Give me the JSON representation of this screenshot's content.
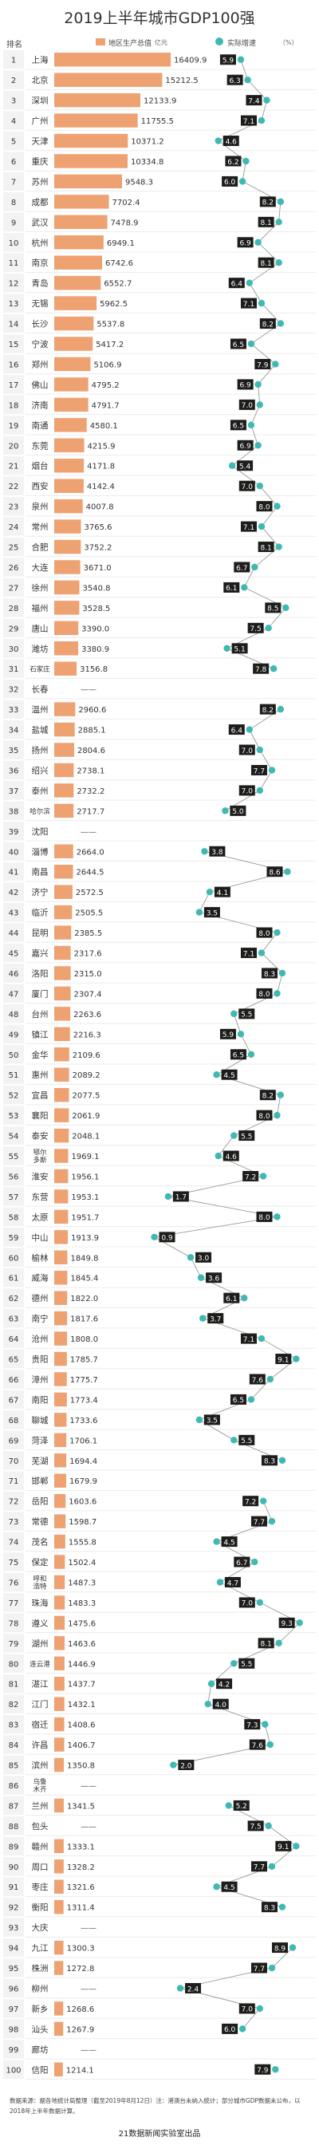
{
  "title": "2019上半年城市GDP100强",
  "header": {
    "rank_label": "排名",
    "gdp_legend": "地区生产总值",
    "gdp_unit": "亿元",
    "growth_legend": "实际增速",
    "growth_unit": "（%）"
  },
  "colors": {
    "bar": "#eea171",
    "dot": "#3fb9b2",
    "label_box": "#1d1d1b",
    "line": "#9a9a9a",
    "rank_bg": "#f3f3f3"
  },
  "chart_data": {
    "type": "bar",
    "title": "2019上半年城市GDP100强",
    "series": [
      {
        "name": "地区生产总值",
        "unit": "亿元"
      },
      {
        "name": "实际增速",
        "unit": "%"
      }
    ],
    "xlim_gdp": [
      0,
      20000
    ],
    "xlim_growth": [
      0,
      9.5
    ],
    "rows": [
      {
        "rank": 1,
        "city": "上海",
        "gdp": 16409.9,
        "gdp_label": "16409.9",
        "growth": 5.9,
        "growth_label": "5.9"
      },
      {
        "rank": 2,
        "city": "北京",
        "gdp": 15212.5,
        "gdp_label": "15212.5",
        "growth": 6.3,
        "growth_label": "6.3"
      },
      {
        "rank": 3,
        "city": "深圳",
        "gdp": 12133.9,
        "gdp_label": "12133.9",
        "growth": 7.4,
        "growth_label": "7.4"
      },
      {
        "rank": 4,
        "city": "广州",
        "gdp": 11755.5,
        "gdp_label": "11755.5",
        "growth": 7.1,
        "growth_label": "7.1"
      },
      {
        "rank": 5,
        "city": "天津",
        "gdp": 10371.2,
        "gdp_label": "10371.2",
        "growth": 4.6,
        "growth_label": "4.6"
      },
      {
        "rank": 6,
        "city": "重庆",
        "gdp": 10334.8,
        "gdp_label": "10334.8",
        "growth": 6.2,
        "growth_label": "6.2"
      },
      {
        "rank": 7,
        "city": "苏州",
        "gdp": 9548.3,
        "gdp_label": "9548.3",
        "growth": 6.0,
        "growth_label": "6.0"
      },
      {
        "rank": 8,
        "city": "成都",
        "gdp": 7702.4,
        "gdp_label": "7702.4",
        "growth": 8.2,
        "growth_label": "8.2"
      },
      {
        "rank": 9,
        "city": "武汉",
        "gdp": 7478.9,
        "gdp_label": "7478.9",
        "growth": 8.1,
        "growth_label": "8.1"
      },
      {
        "rank": 10,
        "city": "杭州",
        "gdp": 6949.1,
        "gdp_label": "6949.1",
        "growth": 6.9,
        "growth_label": "6.9"
      },
      {
        "rank": 11,
        "city": "南京",
        "gdp": 6742.6,
        "gdp_label": "6742.6",
        "growth": 8.1,
        "growth_label": "8.1"
      },
      {
        "rank": 12,
        "city": "青岛",
        "gdp": 6552.7,
        "gdp_label": "6552.7",
        "growth": 6.4,
        "growth_label": "6.4"
      },
      {
        "rank": 13,
        "city": "无锡",
        "gdp": 5962.5,
        "gdp_label": "5962.5",
        "growth": 7.1,
        "growth_label": "7.1"
      },
      {
        "rank": 14,
        "city": "长沙",
        "gdp": 5537.8,
        "gdp_label": "5537.8",
        "growth": 8.2,
        "growth_label": "8.2"
      },
      {
        "rank": 15,
        "city": "宁波",
        "gdp": 5417.2,
        "gdp_label": "5417.2",
        "growth": 6.5,
        "growth_label": "6.5"
      },
      {
        "rank": 16,
        "city": "郑州",
        "gdp": 5106.9,
        "gdp_label": "5106.9",
        "growth": 7.9,
        "growth_label": "7.9"
      },
      {
        "rank": 17,
        "city": "佛山",
        "gdp": 4795.2,
        "gdp_label": "4795.2",
        "growth": 6.9,
        "growth_label": "6.9"
      },
      {
        "rank": 18,
        "city": "济南",
        "gdp": 4791.7,
        "gdp_label": "4791.7",
        "growth": 7.0,
        "growth_label": "7.0"
      },
      {
        "rank": 19,
        "city": "南通",
        "gdp": 4580.1,
        "gdp_label": "4580.1",
        "growth": 6.5,
        "growth_label": "6.5"
      },
      {
        "rank": 20,
        "city": "东莞",
        "gdp": 4215.9,
        "gdp_label": "4215.9",
        "growth": 6.9,
        "growth_label": "6.9"
      },
      {
        "rank": 21,
        "city": "烟台",
        "gdp": 4171.8,
        "gdp_label": "4171.8",
        "growth": 5.4,
        "growth_label": "5.4"
      },
      {
        "rank": 22,
        "city": "西安",
        "gdp": 4142.4,
        "gdp_label": "4142.4",
        "growth": 7.0,
        "growth_label": "7.0"
      },
      {
        "rank": 23,
        "city": "泉州",
        "gdp": 4007.8,
        "gdp_label": "4007.8",
        "growth": 8.0,
        "growth_label": "8.0"
      },
      {
        "rank": 24,
        "city": "常州",
        "gdp": 3765.6,
        "gdp_label": "3765.6",
        "growth": 7.1,
        "growth_label": "7.1"
      },
      {
        "rank": 25,
        "city": "合肥",
        "gdp": 3752.2,
        "gdp_label": "3752.2",
        "growth": 8.1,
        "growth_label": "8.1"
      },
      {
        "rank": 26,
        "city": "大连",
        "gdp": 3671.0,
        "gdp_label": "3671.0",
        "growth": 6.7,
        "growth_label": "6.7"
      },
      {
        "rank": 27,
        "city": "徐州",
        "gdp": 3540.8,
        "gdp_label": "3540.8",
        "growth": 6.1,
        "growth_label": "6.1"
      },
      {
        "rank": 28,
        "city": "福州",
        "gdp": 3528.5,
        "gdp_label": "3528.5",
        "growth": 8.5,
        "growth_label": "8.5"
      },
      {
        "rank": 29,
        "city": "唐山",
        "gdp": 3390.0,
        "gdp_label": "3390.0",
        "growth": 7.5,
        "growth_label": "7.5"
      },
      {
        "rank": 30,
        "city": "潍坊",
        "gdp": 3380.9,
        "gdp_label": "3380.9",
        "growth": 5.1,
        "growth_label": "5.1"
      },
      {
        "rank": 31,
        "city": "石家庄",
        "gdp": 3156.8,
        "gdp_label": "3156.8",
        "growth": 7.8,
        "growth_label": "7.8"
      },
      {
        "rank": 32,
        "city": "长春",
        "gdp": null,
        "gdp_label": "——",
        "growth": null,
        "growth_label": ""
      },
      {
        "rank": 33,
        "city": "温州",
        "gdp": 2960.6,
        "gdp_label": "2960.6",
        "growth": 8.2,
        "growth_label": "8.2"
      },
      {
        "rank": 34,
        "city": "盐城",
        "gdp": 2885.1,
        "gdp_label": "2885.1",
        "growth": 6.4,
        "growth_label": "6.4"
      },
      {
        "rank": 35,
        "city": "扬州",
        "gdp": 2804.6,
        "gdp_label": "2804.6",
        "growth": 7.0,
        "growth_label": "7.0"
      },
      {
        "rank": 36,
        "city": "绍兴",
        "gdp": 2738.1,
        "gdp_label": "2738.1",
        "growth": 7.7,
        "growth_label": "7.7"
      },
      {
        "rank": 37,
        "city": "泰州",
        "gdp": 2732.2,
        "gdp_label": "2732.2",
        "growth": 7.0,
        "growth_label": "7.0"
      },
      {
        "rank": 38,
        "city": "哈尔滨",
        "gdp": 2717.7,
        "gdp_label": "2717.7",
        "growth": 5.0,
        "growth_label": "5.0"
      },
      {
        "rank": 39,
        "city": "沈阳",
        "gdp": null,
        "gdp_label": "——",
        "growth": null,
        "growth_label": ""
      },
      {
        "rank": 40,
        "city": "淄博",
        "gdp": 2664.0,
        "gdp_label": "2664.0",
        "growth": 3.8,
        "growth_label": "3.8"
      },
      {
        "rank": 41,
        "city": "南昌",
        "gdp": 2644.5,
        "gdp_label": "2644.5",
        "growth": 8.6,
        "growth_label": "8.6"
      },
      {
        "rank": 42,
        "city": "济宁",
        "gdp": 2572.5,
        "gdp_label": "2572.5",
        "growth": 4.1,
        "growth_label": "4.1"
      },
      {
        "rank": 43,
        "city": "临沂",
        "gdp": 2505.5,
        "gdp_label": "2505.5",
        "growth": 3.5,
        "growth_label": "3.5"
      },
      {
        "rank": 44,
        "city": "昆明",
        "gdp": 2385.5,
        "gdp_label": "2385.5",
        "growth": 8.0,
        "growth_label": "8.0"
      },
      {
        "rank": 45,
        "city": "嘉兴",
        "gdp": 2317.6,
        "gdp_label": "2317.6",
        "growth": 7.1,
        "growth_label": "7.1"
      },
      {
        "rank": 46,
        "city": "洛阳",
        "gdp": 2315.0,
        "gdp_label": "2315.0",
        "growth": 8.3,
        "growth_label": "8.3"
      },
      {
        "rank": 47,
        "city": "厦门",
        "gdp": 2307.4,
        "gdp_label": "2307.4",
        "growth": 8.0,
        "growth_label": "8.0"
      },
      {
        "rank": 48,
        "city": "台州",
        "gdp": 2263.6,
        "gdp_label": "2263.6",
        "growth": 5.5,
        "growth_label": "5.5"
      },
      {
        "rank": 49,
        "city": "镇江",
        "gdp": 2216.3,
        "gdp_label": "2216.3",
        "growth": 5.9,
        "growth_label": "5.9"
      },
      {
        "rank": 50,
        "city": "金华",
        "gdp": 2109.6,
        "gdp_label": "2109.6",
        "growth": 6.5,
        "growth_label": "6.5"
      },
      {
        "rank": 51,
        "city": "惠州",
        "gdp": 2089.2,
        "gdp_label": "2089.2",
        "growth": 4.5,
        "growth_label": "4.5"
      },
      {
        "rank": 52,
        "city": "宜昌",
        "gdp": 2077.5,
        "gdp_label": "2077.5",
        "growth": 8.2,
        "growth_label": "8.2"
      },
      {
        "rank": 53,
        "city": "襄阳",
        "gdp": 2061.9,
        "gdp_label": "2061.9",
        "growth": 8.0,
        "growth_label": "8.0"
      },
      {
        "rank": 54,
        "city": "泰安",
        "gdp": 2048.1,
        "gdp_label": "2048.1",
        "growth": 5.5,
        "growth_label": "5.5"
      },
      {
        "rank": 55,
        "city": "鄂尔多斯",
        "gdp": 1969.1,
        "gdp_label": "1969.1",
        "growth": 4.6,
        "growth_label": "4.6"
      },
      {
        "rank": 56,
        "city": "淮安",
        "gdp": 1956.1,
        "gdp_label": "1956.1",
        "growth": 7.2,
        "growth_label": "7.2"
      },
      {
        "rank": 57,
        "city": "东营",
        "gdp": 1953.1,
        "gdp_label": "1953.1",
        "growth": 1.7,
        "growth_label": "1.7"
      },
      {
        "rank": 58,
        "city": "太原",
        "gdp": 1951.7,
        "gdp_label": "1951.7",
        "growth": 8.0,
        "growth_label": "8.0"
      },
      {
        "rank": 59,
        "city": "中山",
        "gdp": 1913.9,
        "gdp_label": "1913.9",
        "growth": 0.9,
        "growth_label": "0.9"
      },
      {
        "rank": 60,
        "city": "榆林",
        "gdp": 1849.8,
        "gdp_label": "1849.8",
        "growth": 3.0,
        "growth_label": "3.0"
      },
      {
        "rank": 61,
        "city": "威海",
        "gdp": 1845.4,
        "gdp_label": "1845.4",
        "growth": 3.6,
        "growth_label": "3.6"
      },
      {
        "rank": 62,
        "city": "德州",
        "gdp": 1822.0,
        "gdp_label": "1822.0",
        "growth": 6.1,
        "growth_label": "6.1"
      },
      {
        "rank": 63,
        "city": "南宁",
        "gdp": 1817.6,
        "gdp_label": "1817.6",
        "growth": 3.7,
        "growth_label": "3.7"
      },
      {
        "rank": 64,
        "city": "沧州",
        "gdp": 1808.0,
        "gdp_label": "1808.0",
        "growth": 7.1,
        "growth_label": "7.1"
      },
      {
        "rank": 65,
        "city": "贵阳",
        "gdp": 1785.7,
        "gdp_label": "1785.7",
        "growth": 9.1,
        "growth_label": "9.1"
      },
      {
        "rank": 66,
        "city": "漳州",
        "gdp": 1775.7,
        "gdp_label": "1775.7",
        "growth": 7.6,
        "growth_label": "7.6"
      },
      {
        "rank": 67,
        "city": "南阳",
        "gdp": 1773.4,
        "gdp_label": "1773.4",
        "growth": 6.5,
        "growth_label": "6.5"
      },
      {
        "rank": 68,
        "city": "聊城",
        "gdp": 1733.6,
        "gdp_label": "1733.6",
        "growth": 3.5,
        "growth_label": "3.5"
      },
      {
        "rank": 69,
        "city": "菏泽",
        "gdp": 1706.1,
        "gdp_label": "1706.1",
        "growth": 5.5,
        "growth_label": "5.5"
      },
      {
        "rank": 70,
        "city": "芜湖",
        "gdp": 1694.4,
        "gdp_label": "1694.4",
        "growth": 8.3,
        "growth_label": "8.3"
      },
      {
        "rank": 71,
        "city": "邯郸",
        "gdp": 1679.9,
        "gdp_label": "1679.9",
        "growth": null,
        "growth_label": ""
      },
      {
        "rank": 72,
        "city": "岳阳",
        "gdp": 1603.6,
        "gdp_label": "1603.6",
        "growth": 7.2,
        "growth_label": "7.2"
      },
      {
        "rank": 73,
        "city": "常德",
        "gdp": 1598.7,
        "gdp_label": "1598.7",
        "growth": 7.7,
        "growth_label": "7.7"
      },
      {
        "rank": 74,
        "city": "茂名",
        "gdp": 1555.8,
        "gdp_label": "1555.8",
        "growth": 4.5,
        "growth_label": "4.5"
      },
      {
        "rank": 75,
        "city": "保定",
        "gdp": 1502.4,
        "gdp_label": "1502.4",
        "growth": 6.7,
        "growth_label": "6.7"
      },
      {
        "rank": 76,
        "city": "呼和浩特",
        "gdp": 1487.3,
        "gdp_label": "1487.3",
        "growth": 4.7,
        "growth_label": "4.7"
      },
      {
        "rank": 77,
        "city": "珠海",
        "gdp": 1483.3,
        "gdp_label": "1483.3",
        "growth": 7.0,
        "growth_label": "7.0"
      },
      {
        "rank": 78,
        "city": "遵义",
        "gdp": 1475.6,
        "gdp_label": "1475.6",
        "growth": 9.3,
        "growth_label": "9.3"
      },
      {
        "rank": 79,
        "city": "湖州",
        "gdp": 1463.6,
        "gdp_label": "1463.6",
        "growth": 8.1,
        "growth_label": "8.1"
      },
      {
        "rank": 80,
        "city": "连云港",
        "gdp": 1446.9,
        "gdp_label": "1446.9",
        "growth": 5.5,
        "growth_label": "5.5"
      },
      {
        "rank": 81,
        "city": "湛江",
        "gdp": 1437.7,
        "gdp_label": "1437.7",
        "growth": 4.2,
        "growth_label": "4.2"
      },
      {
        "rank": 82,
        "city": "江门",
        "gdp": 1432.1,
        "gdp_label": "1432.1",
        "growth": 4.0,
        "growth_label": "4.0"
      },
      {
        "rank": 83,
        "city": "宿迁",
        "gdp": 1408.6,
        "gdp_label": "1408.6",
        "growth": 7.3,
        "growth_label": "7.3"
      },
      {
        "rank": 84,
        "city": "许昌",
        "gdp": 1406.7,
        "gdp_label": "1406.7",
        "growth": 7.6,
        "growth_label": "7.6"
      },
      {
        "rank": 85,
        "city": "滨州",
        "gdp": 1350.8,
        "gdp_label": "1350.8",
        "growth": 2.0,
        "growth_label": "2.0"
      },
      {
        "rank": 86,
        "city": "乌鲁木齐",
        "gdp": null,
        "gdp_label": "——",
        "growth": null,
        "growth_label": ""
      },
      {
        "rank": 87,
        "city": "兰州",
        "gdp": 1341.5,
        "gdp_label": "1341.5",
        "growth": 5.2,
        "growth_label": "5.2"
      },
      {
        "rank": 88,
        "city": "包头",
        "gdp": null,
        "gdp_label": "——",
        "growth": 7.5,
        "growth_label": "7.5"
      },
      {
        "rank": 89,
        "city": "赣州",
        "gdp": 1333.1,
        "gdp_label": "1333.1",
        "growth": 9.1,
        "growth_label": "9.1"
      },
      {
        "rank": 90,
        "city": "周口",
        "gdp": 1328.2,
        "gdp_label": "1328.2",
        "growth": 7.7,
        "growth_label": "7.7"
      },
      {
        "rank": 91,
        "city": "枣庄",
        "gdp": 1321.6,
        "gdp_label": "1321.6",
        "growth": 4.5,
        "growth_label": "4.5"
      },
      {
        "rank": 92,
        "city": "衡阳",
        "gdp": 1311.4,
        "gdp_label": "1311.4",
        "growth": 8.3,
        "growth_label": "8.3"
      },
      {
        "rank": 93,
        "city": "大庆",
        "gdp": null,
        "gdp_label": "——",
        "growth": null,
        "growth_label": ""
      },
      {
        "rank": 94,
        "city": "九江",
        "gdp": 1300.3,
        "gdp_label": "1300.3",
        "growth": 8.9,
        "growth_label": "8.9"
      },
      {
        "rank": 95,
        "city": "株洲",
        "gdp": 1272.8,
        "gdp_label": "1272.8",
        "growth": 7.7,
        "growth_label": "7.7"
      },
      {
        "rank": 96,
        "city": "柳州",
        "gdp": null,
        "gdp_label": "——",
        "growth": 2.4,
        "growth_label": "2.4"
      },
      {
        "rank": 97,
        "city": "新乡",
        "gdp": 1268.6,
        "gdp_label": "1268.6",
        "growth": 7.0,
        "growth_label": "7.0"
      },
      {
        "rank": 98,
        "city": "汕头",
        "gdp": 1267.9,
        "gdp_label": "1267.9",
        "growth": 6.0,
        "growth_label": "6.0"
      },
      {
        "rank": 99,
        "city": "廊坊",
        "gdp": null,
        "gdp_label": "——",
        "growth": null,
        "growth_label": ""
      },
      {
        "rank": 100,
        "city": "信阳",
        "gdp": 1214.1,
        "gdp_label": "1214.1",
        "growth": 7.9,
        "growth_label": "7.9"
      }
    ]
  },
  "footnote": "数据来源：据各地统计局整理（截至2019年8月12日）注：港澳台未纳入统计；部分城市GDP数据未公布，以2018年上半年数据计算。",
  "credit": "21数据新闻实验室出品"
}
